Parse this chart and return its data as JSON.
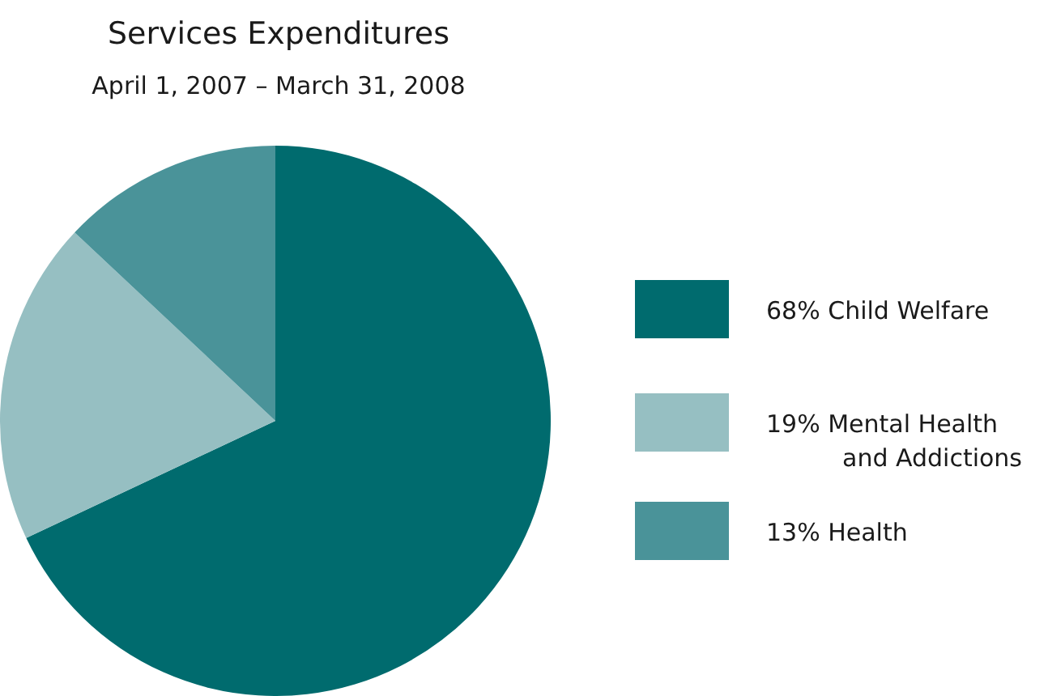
{
  "chart_data": {
    "type": "pie",
    "title": "Services Expenditures",
    "subtitle": "April 1, 2007 – March 31, 2008",
    "categories": [
      "Child Welfare",
      "Mental Health and Addictions",
      "Health"
    ],
    "values": [
      68,
      19,
      13
    ],
    "colors": [
      "#006b6e",
      "#96bfc2",
      "#4a9399"
    ],
    "value_labels": [
      "68%",
      "19%",
      "13%"
    ],
    "legend": "right"
  }
}
